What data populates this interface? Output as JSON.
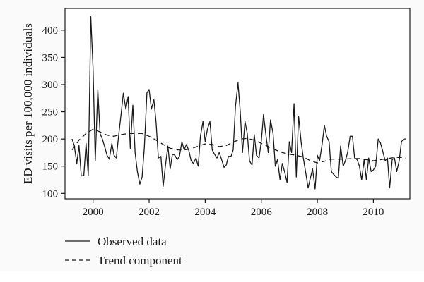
{
  "chart_data": {
    "type": "line",
    "title": "",
    "xlabel": "",
    "ylabel": "ED visits per 100,000 individuals",
    "xlim": [
      1999.0,
      2011.3
    ],
    "ylim": [
      90,
      440
    ],
    "x_ticks": [
      2000,
      2002,
      2004,
      2006,
      2008,
      2010
    ],
    "y_ticks": [
      100,
      150,
      200,
      250,
      300,
      350,
      400
    ],
    "x_tick_labels": [
      "2000",
      "2002",
      "2004",
      "2006",
      "2008",
      "2010"
    ],
    "y_tick_labels": [
      "100",
      "150",
      "200",
      "250",
      "300",
      "350",
      "400"
    ],
    "grid": false,
    "legend_position": "bottom-left",
    "series": [
      {
        "name": "Observed data",
        "style": "solid",
        "color": "#1a1a1a",
        "points": [
          [
            1999.25,
            200
          ],
          [
            1999.33,
            188
          ],
          [
            1999.42,
            155
          ],
          [
            1999.5,
            188
          ],
          [
            1999.58,
            132
          ],
          [
            1999.67,
            133
          ],
          [
            1999.75,
            192
          ],
          [
            1999.83,
            133
          ],
          [
            1999.92,
            425
          ],
          [
            2000.0,
            330
          ],
          [
            2000.08,
            160
          ],
          [
            2000.17,
            291
          ],
          [
            2000.25,
            210
          ],
          [
            2000.33,
            200
          ],
          [
            2000.42,
            185
          ],
          [
            2000.5,
            170
          ],
          [
            2000.58,
            163
          ],
          [
            2000.67,
            192
          ],
          [
            2000.75,
            170
          ],
          [
            2000.83,
            165
          ],
          [
            2000.92,
            210
          ],
          [
            2001.0,
            245
          ],
          [
            2001.08,
            284
          ],
          [
            2001.17,
            255
          ],
          [
            2001.25,
            278
          ],
          [
            2001.33,
            183
          ],
          [
            2001.42,
            262
          ],
          [
            2001.5,
            175
          ],
          [
            2001.58,
            140
          ],
          [
            2001.67,
            117
          ],
          [
            2001.75,
            130
          ],
          [
            2001.83,
            185
          ],
          [
            2001.92,
            285
          ],
          [
            2002.0,
            291
          ],
          [
            2002.08,
            255
          ],
          [
            2002.17,
            272
          ],
          [
            2002.25,
            230
          ],
          [
            2002.33,
            165
          ],
          [
            2002.42,
            168
          ],
          [
            2002.5,
            113
          ],
          [
            2002.58,
            150
          ],
          [
            2002.67,
            187
          ],
          [
            2002.75,
            145
          ],
          [
            2002.83,
            172
          ],
          [
            2002.92,
            170
          ],
          [
            2003.0,
            162
          ],
          [
            2003.08,
            168
          ],
          [
            2003.17,
            195
          ],
          [
            2003.25,
            180
          ],
          [
            2003.33,
            190
          ],
          [
            2003.42,
            178
          ],
          [
            2003.5,
            160
          ],
          [
            2003.58,
            155
          ],
          [
            2003.67,
            165
          ],
          [
            2003.75,
            150
          ],
          [
            2003.83,
            205
          ],
          [
            2003.92,
            232
          ],
          [
            2004.0,
            195
          ],
          [
            2004.08,
            218
          ],
          [
            2004.17,
            232
          ],
          [
            2004.25,
            180
          ],
          [
            2004.33,
            172
          ],
          [
            2004.42,
            165
          ],
          [
            2004.5,
            175
          ],
          [
            2004.58,
            163
          ],
          [
            2004.67,
            148
          ],
          [
            2004.75,
            152
          ],
          [
            2004.83,
            168
          ],
          [
            2004.92,
            168
          ],
          [
            2005.0,
            180
          ],
          [
            2005.08,
            260
          ],
          [
            2005.17,
            303
          ],
          [
            2005.25,
            250
          ],
          [
            2005.33,
            175
          ],
          [
            2005.42,
            232
          ],
          [
            2005.5,
            210
          ],
          [
            2005.58,
            160
          ],
          [
            2005.67,
            152
          ],
          [
            2005.75,
            208
          ],
          [
            2005.83,
            170
          ],
          [
            2005.92,
            165
          ],
          [
            2006.0,
            195
          ],
          [
            2006.08,
            245
          ],
          [
            2006.17,
            205
          ],
          [
            2006.25,
            175
          ],
          [
            2006.33,
            235
          ],
          [
            2006.42,
            210
          ],
          [
            2006.5,
            150
          ],
          [
            2006.58,
            162
          ],
          [
            2006.67,
            125
          ],
          [
            2006.75,
            155
          ],
          [
            2006.83,
            140
          ],
          [
            2006.92,
            120
          ],
          [
            2007.0,
            195
          ],
          [
            2007.08,
            175
          ],
          [
            2007.17,
            265
          ],
          [
            2007.25,
            130
          ],
          [
            2007.33,
            242
          ],
          [
            2007.42,
            195
          ],
          [
            2007.5,
            165
          ],
          [
            2007.58,
            140
          ],
          [
            2007.67,
            110
          ],
          [
            2007.75,
            128
          ],
          [
            2007.83,
            145
          ],
          [
            2007.92,
            108
          ],
          [
            2008.0,
            170
          ],
          [
            2008.08,
            160
          ],
          [
            2008.17,
            190
          ],
          [
            2008.25,
            225
          ],
          [
            2008.33,
            205
          ],
          [
            2008.42,
            195
          ],
          [
            2008.5,
            140
          ],
          [
            2008.58,
            135
          ],
          [
            2008.67,
            130
          ],
          [
            2008.75,
            128
          ],
          [
            2008.83,
            187
          ],
          [
            2008.92,
            150
          ],
          [
            2009.0,
            160
          ],
          [
            2009.08,
            175
          ],
          [
            2009.17,
            205
          ],
          [
            2009.25,
            205
          ],
          [
            2009.33,
            165
          ],
          [
            2009.42,
            162
          ],
          [
            2009.5,
            150
          ],
          [
            2009.58,
            125
          ],
          [
            2009.67,
            162
          ],
          [
            2009.75,
            125
          ],
          [
            2009.83,
            165
          ],
          [
            2009.92,
            140
          ],
          [
            2010.0,
            143
          ],
          [
            2010.08,
            150
          ],
          [
            2010.17,
            200
          ],
          [
            2010.25,
            193
          ],
          [
            2010.33,
            178
          ],
          [
            2010.42,
            160
          ],
          [
            2010.5,
            165
          ],
          [
            2010.58,
            110
          ],
          [
            2010.67,
            162
          ],
          [
            2010.75,
            165
          ],
          [
            2010.83,
            140
          ],
          [
            2010.92,
            160
          ],
          [
            2011.0,
            195
          ],
          [
            2011.08,
            200
          ],
          [
            2011.17,
            200
          ]
        ]
      },
      {
        "name": "Trend component",
        "style": "dashed",
        "color": "#1a1a1a",
        "points": [
          [
            1999.25,
            180
          ],
          [
            1999.5,
            198
          ],
          [
            1999.75,
            210
          ],
          [
            2000.0,
            218
          ],
          [
            2000.25,
            213
          ],
          [
            2000.5,
            207
          ],
          [
            2000.75,
            205
          ],
          [
            2001.0,
            208
          ],
          [
            2001.25,
            210
          ],
          [
            2001.5,
            210
          ],
          [
            2001.75,
            210
          ],
          [
            2002.0,
            205
          ],
          [
            2002.25,
            198
          ],
          [
            2002.5,
            190
          ],
          [
            2002.75,
            183
          ],
          [
            2003.0,
            180
          ],
          [
            2003.25,
            180
          ],
          [
            2003.5,
            182
          ],
          [
            2003.75,
            187
          ],
          [
            2004.0,
            191
          ],
          [
            2004.25,
            190
          ],
          [
            2004.5,
            186
          ],
          [
            2004.75,
            188
          ],
          [
            2005.0,
            194
          ],
          [
            2005.25,
            200
          ],
          [
            2005.5,
            201
          ],
          [
            2005.75,
            198
          ],
          [
            2006.0,
            192
          ],
          [
            2006.25,
            186
          ],
          [
            2006.5,
            180
          ],
          [
            2006.75,
            175
          ],
          [
            2007.0,
            172
          ],
          [
            2007.25,
            170
          ],
          [
            2007.5,
            167
          ],
          [
            2007.75,
            160
          ],
          [
            2008.0,
            156
          ],
          [
            2008.25,
            159
          ],
          [
            2008.5,
            163
          ],
          [
            2008.75,
            163
          ],
          [
            2009.0,
            163
          ],
          [
            2009.25,
            164
          ],
          [
            2009.5,
            164
          ],
          [
            2009.75,
            162
          ],
          [
            2010.0,
            160
          ],
          [
            2010.25,
            162
          ],
          [
            2010.5,
            164
          ],
          [
            2010.75,
            166
          ],
          [
            2011.0,
            166
          ],
          [
            2011.17,
            165
          ]
        ]
      }
    ],
    "legend": [
      {
        "label": "Observed data",
        "style": "solid"
      },
      {
        "label": "Trend component",
        "style": "dashed"
      }
    ]
  }
}
